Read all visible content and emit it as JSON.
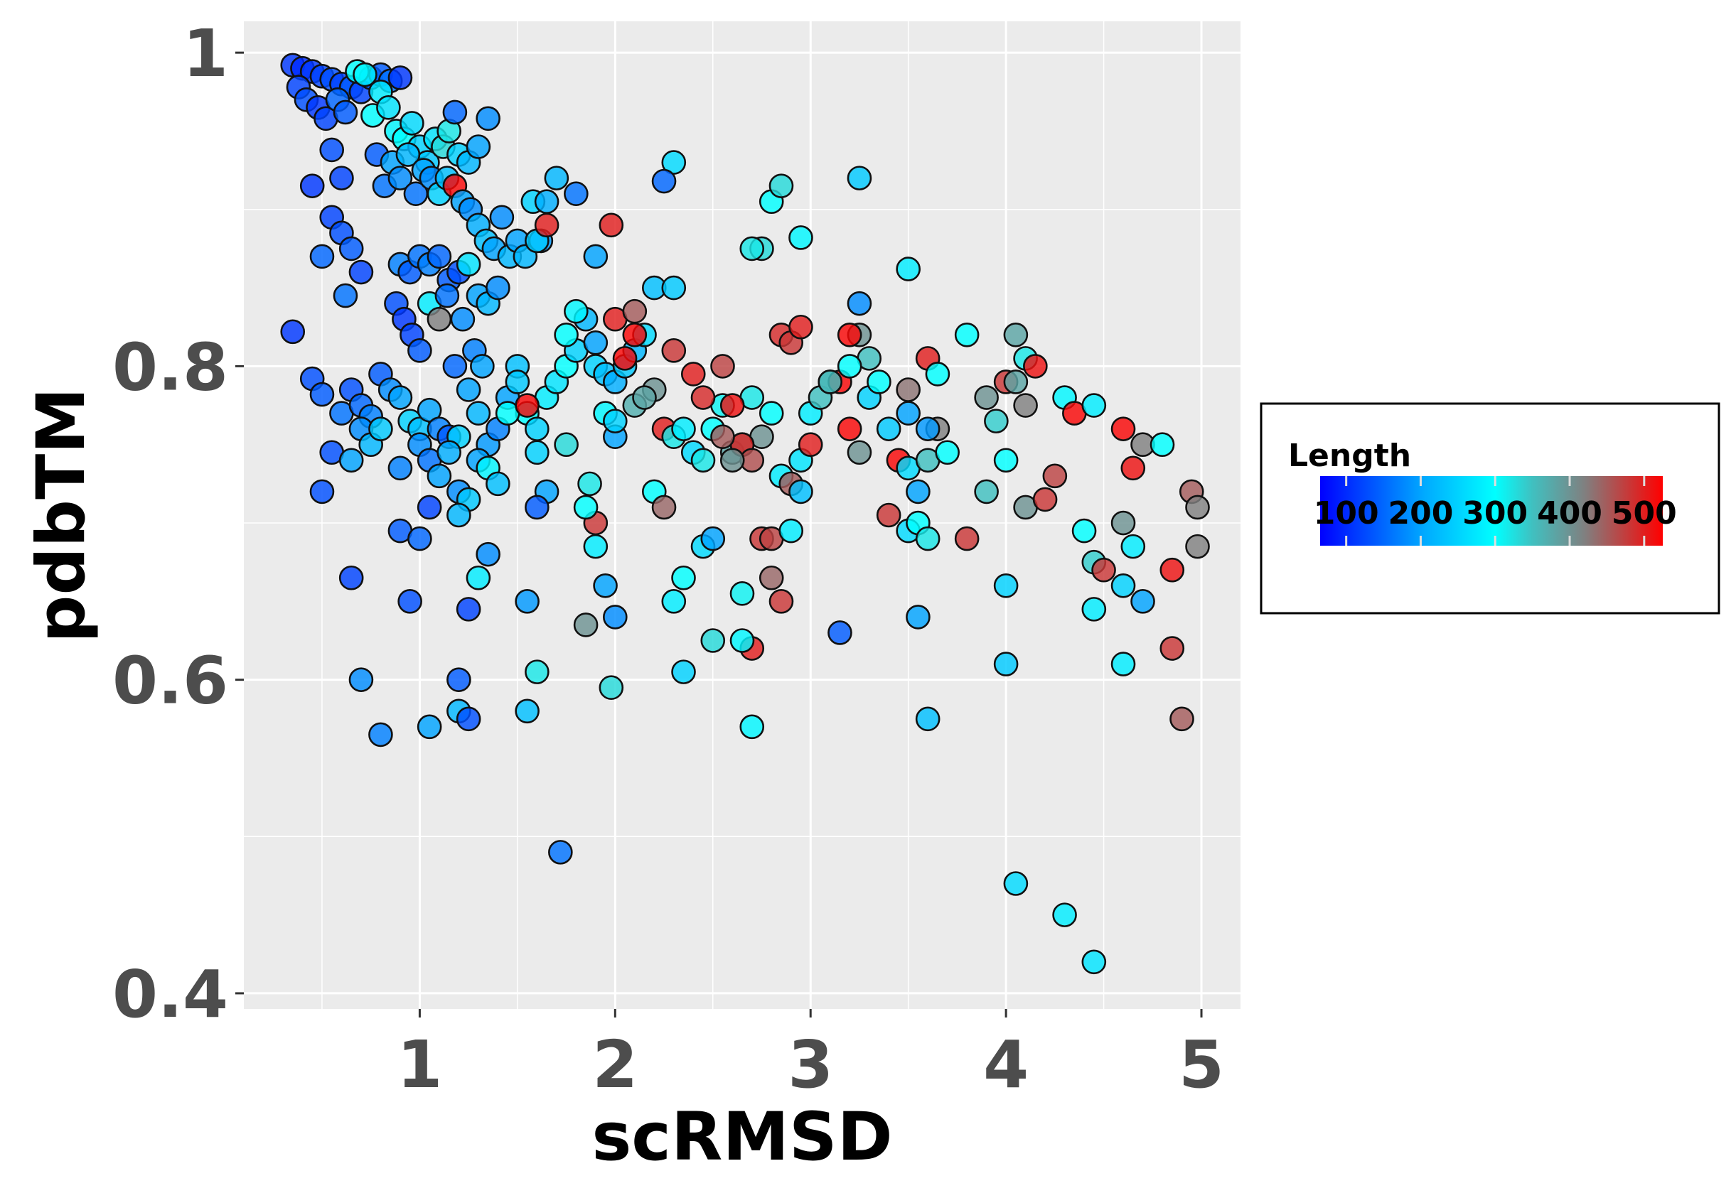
{
  "chart_data": {
    "type": "scatter",
    "xlabel": "scRMSD",
    "ylabel": "pdbTM",
    "xlim": [
      0.1,
      5.2
    ],
    "ylim": [
      0.39,
      1.02
    ],
    "x_ticks": [
      1,
      2,
      3,
      4,
      5
    ],
    "x_tick_labels": [
      "1",
      "2",
      "3",
      "4",
      "5"
    ],
    "y_ticks": [
      0.4,
      0.6,
      0.8,
      1.0
    ],
    "y_tick_labels": [
      "0.4",
      "0.6",
      "0.8",
      "1"
    ],
    "grid": true,
    "panel_background": "#ebebeb",
    "grid_color": "#ffffff",
    "point_outline": "#111111",
    "point_opacity": 0.82,
    "color_scale": {
      "title": "Length",
      "domain": [
        65,
        525
      ],
      "stops": [
        {
          "value": 65,
          "color": "#0000ff"
        },
        {
          "value": 205,
          "color": "#00aaff"
        },
        {
          "value": 300,
          "color": "#00ffff"
        },
        {
          "value": 350,
          "color": "#40c0c0"
        },
        {
          "value": 420,
          "color": "#808080"
        },
        {
          "value": 525,
          "color": "#ff0000"
        }
      ],
      "ticks": [
        100,
        200,
        300,
        400,
        500
      ],
      "tick_labels": [
        "100",
        "200",
        "300",
        "400",
        "500"
      ],
      "legend_placement": "right"
    },
    "points": [
      [
        0.35,
        0.992,
        110
      ],
      [
        0.4,
        0.99,
        100
      ],
      [
        0.45,
        0.988,
        110
      ],
      [
        0.5,
        0.985,
        120
      ],
      [
        0.55,
        0.983,
        130
      ],
      [
        0.6,
        0.98,
        120
      ],
      [
        0.65,
        0.978,
        140
      ],
      [
        0.7,
        0.975,
        120
      ],
      [
        0.75,
        0.984,
        150
      ],
      [
        0.8,
        0.986,
        140
      ],
      [
        0.85,
        0.982,
        160
      ],
      [
        0.9,
        0.984,
        110
      ],
      [
        0.38,
        0.978,
        120
      ],
      [
        0.42,
        0.97,
        130
      ],
      [
        0.48,
        0.965,
        110
      ],
      [
        0.52,
        0.958,
        120
      ],
      [
        0.58,
        0.97,
        150
      ],
      [
        0.62,
        0.962,
        140
      ],
      [
        0.68,
        0.988,
        300
      ],
      [
        0.72,
        0.986,
        290
      ],
      [
        0.76,
        0.96,
        300
      ],
      [
        0.8,
        0.975,
        280
      ],
      [
        0.84,
        0.965,
        270
      ],
      [
        0.88,
        0.95,
        290
      ],
      [
        0.92,
        0.945,
        300
      ],
      [
        0.96,
        0.955,
        260
      ],
      [
        1.0,
        0.94,
        250
      ],
      [
        1.04,
        0.93,
        240
      ],
      [
        1.08,
        0.945,
        270
      ],
      [
        1.12,
        0.94,
        330
      ],
      [
        1.15,
        0.95,
        320
      ],
      [
        1.18,
        0.962,
        150
      ],
      [
        1.2,
        0.935,
        250
      ],
      [
        1.25,
        0.93,
        220
      ],
      [
        1.3,
        0.94,
        200
      ],
      [
        1.35,
        0.958,
        180
      ],
      [
        0.55,
        0.938,
        130
      ],
      [
        0.6,
        0.92,
        120
      ],
      [
        0.78,
        0.935,
        140
      ],
      [
        0.82,
        0.915,
        160
      ],
      [
        0.86,
        0.93,
        200
      ],
      [
        0.9,
        0.92,
        180
      ],
      [
        0.94,
        0.935,
        220
      ],
      [
        0.98,
        0.91,
        160
      ],
      [
        1.02,
        0.925,
        200
      ],
      [
        1.06,
        0.92,
        180
      ],
      [
        1.1,
        0.91,
        250
      ],
      [
        1.14,
        0.92,
        230
      ],
      [
        1.18,
        0.915,
        520
      ],
      [
        1.22,
        0.905,
        200
      ],
      [
        1.26,
        0.9,
        180
      ],
      [
        1.3,
        0.89,
        210
      ],
      [
        1.34,
        0.88,
        230
      ],
      [
        1.38,
        0.875,
        200
      ],
      [
        1.42,
        0.895,
        180
      ],
      [
        1.46,
        0.87,
        220
      ],
      [
        1.5,
        0.88,
        200
      ],
      [
        1.54,
        0.87,
        220
      ],
      [
        1.58,
        0.905,
        250
      ],
      [
        1.62,
        0.88,
        190
      ],
      [
        0.45,
        0.915,
        110
      ],
      [
        0.55,
        0.895,
        120
      ],
      [
        0.6,
        0.885,
        130
      ],
      [
        0.65,
        0.875,
        140
      ],
      [
        0.7,
        0.86,
        120
      ],
      [
        0.5,
        0.87,
        150
      ],
      [
        0.62,
        0.845,
        160
      ],
      [
        0.9,
        0.865,
        170
      ],
      [
        0.95,
        0.86,
        140
      ],
      [
        1.0,
        0.87,
        160
      ],
      [
        1.05,
        0.865,
        170
      ],
      [
        1.1,
        0.87,
        150
      ],
      [
        1.15,
        0.855,
        140
      ],
      [
        1.2,
        0.86,
        130
      ],
      [
        1.25,
        0.865,
        270
      ],
      [
        1.3,
        0.845,
        200
      ],
      [
        1.35,
        0.84,
        220
      ],
      [
        1.4,
        0.85,
        180
      ],
      [
        0.88,
        0.84,
        130
      ],
      [
        0.92,
        0.83,
        110
      ],
      [
        0.96,
        0.82,
        120
      ],
      [
        1.0,
        0.81,
        140
      ],
      [
        1.05,
        0.84,
        280
      ],
      [
        1.1,
        0.83,
        420
      ],
      [
        1.14,
        0.845,
        160
      ],
      [
        1.18,
        0.8,
        150
      ],
      [
        1.22,
        0.83,
        180
      ],
      [
        1.28,
        0.81,
        170
      ],
      [
        1.32,
        0.8,
        200
      ],
      [
        0.35,
        0.822,
        110
      ],
      [
        0.45,
        0.792,
        130
      ],
      [
        0.5,
        0.782,
        140
      ],
      [
        0.6,
        0.77,
        160
      ],
      [
        0.65,
        0.785,
        130
      ],
      [
        0.7,
        0.775,
        150
      ],
      [
        0.75,
        0.768,
        170
      ],
      [
        0.8,
        0.795,
        140
      ],
      [
        0.85,
        0.785,
        180
      ],
      [
        0.9,
        0.78,
        200
      ],
      [
        0.95,
        0.765,
        250
      ],
      [
        1.0,
        0.76,
        230
      ],
      [
        1.05,
        0.772,
        200
      ],
      [
        1.1,
        0.76,
        170
      ],
      [
        1.15,
        0.755,
        140
      ],
      [
        1.2,
        0.755,
        250
      ],
      [
        1.25,
        0.785,
        200
      ],
      [
        1.3,
        0.77,
        220
      ],
      [
        1.35,
        0.75,
        190
      ],
      [
        1.4,
        0.76,
        170
      ],
      [
        1.45,
        0.78,
        200
      ],
      [
        1.5,
        0.8,
        230
      ],
      [
        1.55,
        0.77,
        300
      ],
      [
        1.6,
        0.76,
        250
      ],
      [
        1.65,
        0.78,
        280
      ],
      [
        1.7,
        0.79,
        270
      ],
      [
        1.75,
        0.8,
        300
      ],
      [
        1.8,
        0.81,
        250
      ],
      [
        1.85,
        0.83,
        220
      ],
      [
        1.9,
        0.815,
        200
      ],
      [
        0.55,
        0.745,
        130
      ],
      [
        0.65,
        0.74,
        200
      ],
      [
        0.7,
        0.76,
        180
      ],
      [
        0.75,
        0.75,
        220
      ],
      [
        0.8,
        0.76,
        240
      ],
      [
        0.9,
        0.735,
        170
      ],
      [
        1.0,
        0.75,
        180
      ],
      [
        1.05,
        0.74,
        160
      ],
      [
        1.1,
        0.73,
        200
      ],
      [
        1.15,
        0.745,
        210
      ],
      [
        1.2,
        0.72,
        180
      ],
      [
        1.25,
        0.715,
        240
      ],
      [
        1.3,
        0.74,
        200
      ],
      [
        1.35,
        0.735,
        290
      ],
      [
        1.4,
        0.725,
        230
      ],
      [
        1.45,
        0.77,
        300
      ],
      [
        1.5,
        0.79,
        240
      ],
      [
        1.55,
        0.775,
        520
      ],
      [
        1.6,
        0.745,
        250
      ],
      [
        1.65,
        0.72,
        200
      ],
      [
        0.5,
        0.72,
        130
      ],
      [
        0.9,
        0.695,
        140
      ],
      [
        1.0,
        0.69,
        150
      ],
      [
        1.05,
        0.71,
        120
      ],
      [
        1.2,
        0.705,
        220
      ],
      [
        1.3,
        0.665,
        280
      ],
      [
        1.35,
        0.68,
        180
      ],
      [
        1.6,
        0.71,
        140
      ],
      [
        0.65,
        0.665,
        120
      ],
      [
        0.95,
        0.65,
        130
      ],
      [
        1.25,
        0.645,
        120
      ],
      [
        1.55,
        0.65,
        190
      ],
      [
        0.7,
        0.6,
        180
      ],
      [
        0.8,
        0.565,
        170
      ],
      [
        1.05,
        0.57,
        200
      ],
      [
        1.2,
        0.58,
        220
      ],
      [
        1.25,
        0.575,
        130
      ],
      [
        1.2,
        0.6,
        140
      ],
      [
        1.55,
        0.58,
        230
      ],
      [
        1.6,
        0.605,
        320
      ],
      [
        1.72,
        0.49,
        160
      ],
      [
        1.75,
        0.82,
        300
      ],
      [
        1.8,
        0.835,
        290
      ],
      [
        1.9,
        0.8,
        250
      ],
      [
        1.95,
        0.795,
        230
      ],
      [
        2.0,
        0.79,
        210
      ],
      [
        2.05,
        0.8,
        240
      ],
      [
        2.1,
        0.81,
        220
      ],
      [
        2.15,
        0.82,
        260
      ],
      [
        2.2,
        0.785,
        400
      ],
      [
        2.25,
        0.76,
        500
      ],
      [
        2.3,
        0.755,
        320
      ],
      [
        2.35,
        0.76,
        280
      ],
      [
        2.4,
        0.745,
        260
      ],
      [
        2.45,
        0.74,
        320
      ],
      [
        2.5,
        0.76,
        300
      ],
      [
        2.55,
        0.775,
        310
      ],
      [
        2.6,
        0.745,
        380
      ],
      [
        2.65,
        0.75,
        350
      ],
      [
        2.7,
        0.78,
        320
      ],
      [
        2.75,
        0.755,
        400
      ],
      [
        2.8,
        0.77,
        300
      ],
      [
        2.85,
        0.73,
        280
      ],
      [
        2.9,
        0.725,
        450
      ],
      [
        2.95,
        0.74,
        270
      ],
      [
        3.0,
        0.77,
        280
      ],
      [
        3.05,
        0.78,
        350
      ],
      [
        3.1,
        0.79,
        400
      ],
      [
        3.15,
        0.79,
        520
      ],
      [
        3.2,
        0.76,
        520
      ],
      [
        3.25,
        0.745,
        400
      ],
      [
        3.3,
        0.78,
        250
      ],
      [
        3.35,
        0.79,
        300
      ],
      [
        3.4,
        0.76,
        240
      ],
      [
        3.45,
        0.74,
        520
      ],
      [
        3.5,
        0.735,
        260
      ],
      [
        3.55,
        0.72,
        200
      ],
      [
        3.6,
        0.74,
        350
      ],
      [
        3.65,
        0.76,
        420
      ],
      [
        3.7,
        0.745,
        300
      ],
      [
        1.98,
        0.89,
        500
      ],
      [
        2.0,
        0.83,
        500
      ],
      [
        2.1,
        0.835,
        450
      ],
      [
        2.05,
        0.805,
        520
      ],
      [
        2.1,
        0.82,
        520
      ],
      [
        2.3,
        0.81,
        480
      ],
      [
        2.4,
        0.795,
        500
      ],
      [
        2.45,
        0.78,
        490
      ],
      [
        2.55,
        0.8,
        470
      ],
      [
        2.6,
        0.775,
        510
      ],
      [
        2.65,
        0.75,
        500
      ],
      [
        2.7,
        0.74,
        460
      ],
      [
        2.75,
        0.69,
        480
      ],
      [
        2.8,
        0.69,
        470
      ],
      [
        2.85,
        0.82,
        490
      ],
      [
        2.9,
        0.815,
        480
      ],
      [
        2.95,
        0.825,
        500
      ],
      [
        3.0,
        0.75,
        500
      ],
      [
        2.7,
        0.62,
        500
      ],
      [
        2.85,
        0.65,
        480
      ],
      [
        2.8,
        0.665,
        440
      ],
      [
        1.85,
        0.635,
        400
      ],
      [
        1.9,
        0.7,
        480
      ],
      [
        1.98,
        0.595,
        330
      ],
      [
        1.85,
        0.71,
        300
      ],
      [
        1.87,
        0.725,
        320
      ],
      [
        1.9,
        0.685,
        280
      ],
      [
        1.95,
        0.66,
        200
      ],
      [
        2.0,
        0.64,
        180
      ],
      [
        2.3,
        0.93,
        260
      ],
      [
        2.25,
        0.918,
        150
      ],
      [
        2.2,
        0.85,
        230
      ],
      [
        2.3,
        0.85,
        240
      ],
      [
        1.8,
        0.91,
        160
      ],
      [
        1.9,
        0.87,
        200
      ],
      [
        1.7,
        0.92,
        220
      ],
      [
        1.6,
        0.88,
        240
      ],
      [
        1.65,
        0.89,
        500
      ],
      [
        1.65,
        0.905,
        210
      ],
      [
        2.8,
        0.905,
        300
      ],
      [
        2.85,
        0.915,
        330
      ],
      [
        2.75,
        0.875,
        330
      ],
      [
        2.7,
        0.875,
        320
      ],
      [
        2.95,
        0.882,
        290
      ],
      [
        3.25,
        0.92,
        240
      ],
      [
        3.5,
        0.862,
        280
      ],
      [
        3.25,
        0.84,
        180
      ],
      [
        3.25,
        0.82,
        400
      ],
      [
        3.2,
        0.82,
        520
      ],
      [
        3.3,
        0.805,
        350
      ],
      [
        3.1,
        0.79,
        350
      ],
      [
        3.2,
        0.8,
        300
      ],
      [
        3.5,
        0.785,
        430
      ],
      [
        3.5,
        0.77,
        200
      ],
      [
        3.6,
        0.76,
        190
      ],
      [
        3.6,
        0.805,
        500
      ],
      [
        3.65,
        0.795,
        300
      ],
      [
        3.8,
        0.82,
        300
      ],
      [
        3.9,
        0.78,
        400
      ],
      [
        3.95,
        0.765,
        340
      ],
      [
        4.0,
        0.79,
        480
      ],
      [
        4.05,
        0.79,
        380
      ],
      [
        4.05,
        0.82,
        380
      ],
      [
        4.1,
        0.805,
        320
      ],
      [
        4.1,
        0.775,
        420
      ],
      [
        4.15,
        0.8,
        510
      ],
      [
        4.3,
        0.78,
        290
      ],
      [
        4.35,
        0.77,
        520
      ],
      [
        4.45,
        0.775,
        280
      ],
      [
        4.6,
        0.76,
        520
      ],
      [
        4.7,
        0.75,
        420
      ],
      [
        4.8,
        0.75,
        300
      ],
      [
        4.65,
        0.735,
        510
      ],
      [
        4.95,
        0.72,
        450
      ],
      [
        4.98,
        0.71,
        420
      ],
      [
        3.4,
        0.705,
        480
      ],
      [
        3.5,
        0.695,
        260
      ],
      [
        3.55,
        0.7,
        300
      ],
      [
        3.6,
        0.69,
        320
      ],
      [
        3.8,
        0.69,
        480
      ],
      [
        3.9,
        0.72,
        350
      ],
      [
        4.0,
        0.74,
        300
      ],
      [
        4.1,
        0.71,
        400
      ],
      [
        4.2,
        0.715,
        480
      ],
      [
        4.25,
        0.73,
        470
      ],
      [
        4.4,
        0.695,
        300
      ],
      [
        4.45,
        0.675,
        340
      ],
      [
        4.5,
        0.67,
        480
      ],
      [
        4.6,
        0.7,
        400
      ],
      [
        4.65,
        0.685,
        280
      ],
      [
        4.7,
        0.65,
        200
      ],
      [
        4.6,
        0.66,
        250
      ],
      [
        4.85,
        0.67,
        510
      ],
      [
        4.98,
        0.685,
        420
      ],
      [
        4.45,
        0.645,
        280
      ],
      [
        4.6,
        0.61,
        280
      ],
      [
        4.85,
        0.62,
        480
      ],
      [
        4.9,
        0.575,
        450
      ],
      [
        4.0,
        0.66,
        250
      ],
      [
        4.0,
        0.61,
        240
      ],
      [
        3.55,
        0.64,
        200
      ],
      [
        3.6,
        0.575,
        230
      ],
      [
        3.15,
        0.63,
        140
      ],
      [
        2.65,
        0.625,
        290
      ],
      [
        2.7,
        0.57,
        290
      ],
      [
        2.45,
        0.685,
        260
      ],
      [
        2.5,
        0.69,
        200
      ],
      [
        2.3,
        0.65,
        280
      ],
      [
        2.35,
        0.665,
        300
      ],
      [
        2.35,
        0.605,
        250
      ],
      [
        2.5,
        0.625,
        330
      ],
      [
        2.65,
        0.655,
        310
      ],
      [
        4.05,
        0.47,
        260
      ],
      [
        4.3,
        0.45,
        280
      ],
      [
        4.45,
        0.42,
        270
      ],
      [
        2.95,
        0.72,
        230
      ],
      [
        2.9,
        0.695,
        280
      ],
      [
        1.75,
        0.75,
        330
      ],
      [
        2.0,
        0.755,
        200
      ],
      [
        2.1,
        0.775,
        370
      ],
      [
        2.15,
        0.78,
        380
      ],
      [
        2.2,
        0.72,
        300
      ],
      [
        2.25,
        0.71,
        440
      ],
      [
        1.95,
        0.77,
        290
      ],
      [
        2.0,
        0.765,
        250
      ],
      [
        2.55,
        0.755,
        450
      ],
      [
        2.6,
        0.74,
        400
      ]
    ]
  }
}
